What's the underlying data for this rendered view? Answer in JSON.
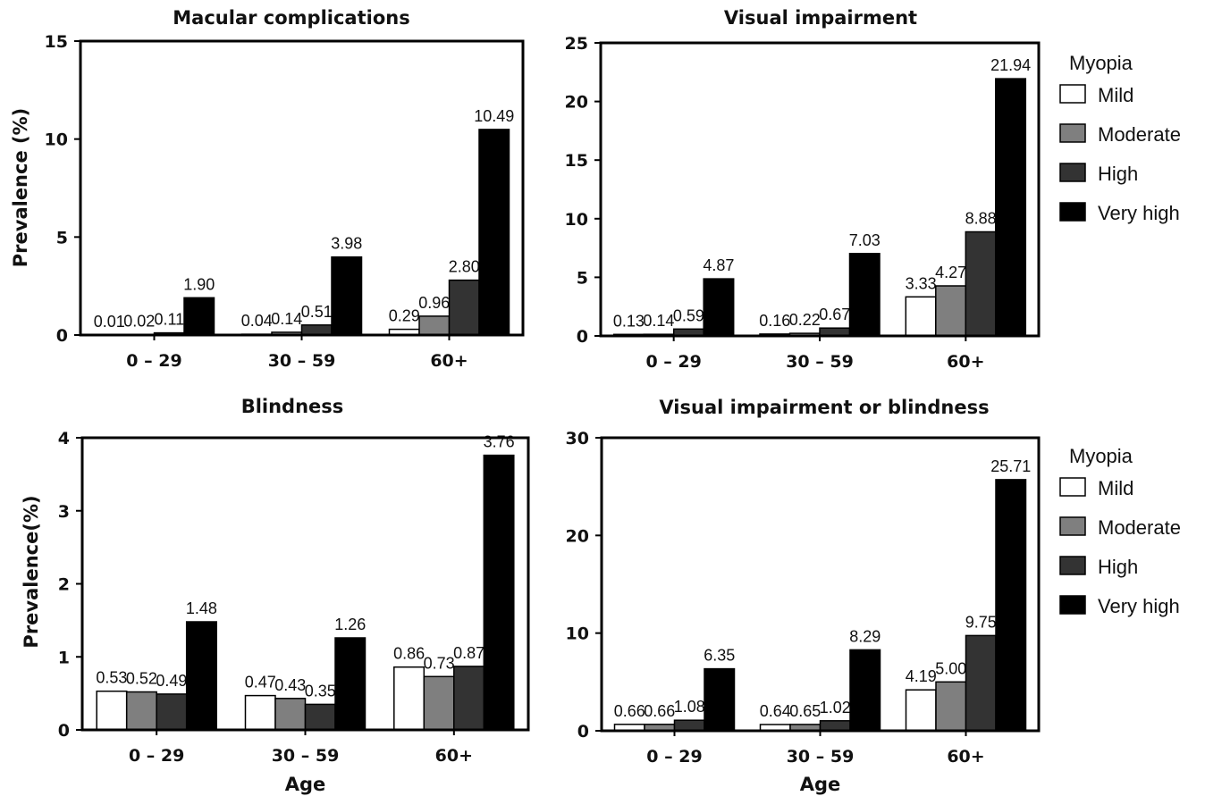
{
  "chart_data": [
    {
      "type": "bar",
      "title": "Macular complications",
      "ylabel": "Prevalence (%)",
      "xlabel": "",
      "ylim": [
        0,
        15
      ],
      "yticks": [
        0,
        5,
        10,
        15
      ],
      "categories": [
        "0 – 29",
        "30 – 59",
        "60+"
      ],
      "series": [
        {
          "name": "Mild",
          "values": [
            0.01,
            0.04,
            0.29
          ],
          "labels": [
            "0.01",
            "0.04",
            "0.29"
          ]
        },
        {
          "name": "Moderate",
          "values": [
            0.02,
            0.14,
            0.96
          ],
          "labels": [
            "0.02",
            "0.14",
            "0.96"
          ]
        },
        {
          "name": "High",
          "values": [
            0.11,
            0.51,
            2.8
          ],
          "labels": [
            "0.11",
            "0.51",
            "2.80"
          ]
        },
        {
          "name": "Very high",
          "values": [
            1.9,
            3.98,
            10.49
          ],
          "labels": [
            "1.90",
            "3.98",
            "10.49"
          ]
        }
      ]
    },
    {
      "type": "bar",
      "title": "Visual impairment",
      "ylabel": "",
      "xlabel": "",
      "ylim": [
        0,
        25
      ],
      "yticks": [
        0,
        5,
        10,
        15,
        20,
        25
      ],
      "categories": [
        "0 – 29",
        "30 – 59",
        "60+"
      ],
      "series": [
        {
          "name": "Mild",
          "values": [
            0.13,
            0.16,
            3.33
          ],
          "labels": [
            "0.13",
            "0.16",
            "3.33"
          ]
        },
        {
          "name": "Moderate",
          "values": [
            0.14,
            0.22,
            4.27
          ],
          "labels": [
            "0.14",
            "0.22",
            "4.27"
          ]
        },
        {
          "name": "High",
          "values": [
            0.59,
            0.67,
            8.88
          ],
          "labels": [
            "0.59",
            "0.67",
            "8.88"
          ]
        },
        {
          "name": "Very high",
          "values": [
            4.87,
            7.03,
            21.94
          ],
          "labels": [
            "4.87",
            "7.03",
            "21.94"
          ]
        }
      ]
    },
    {
      "type": "bar",
      "title": "Blindness",
      "ylabel": "Prevalence(%)",
      "xlabel": "Age",
      "ylim": [
        0,
        4
      ],
      "yticks": [
        0,
        1,
        2,
        3,
        4
      ],
      "categories": [
        "0 – 29",
        "30 – 59",
        "60+"
      ],
      "series": [
        {
          "name": "Mild",
          "values": [
            0.53,
            0.47,
            0.86
          ],
          "labels": [
            "0.53",
            "0.47",
            "0.86"
          ]
        },
        {
          "name": "Moderate",
          "values": [
            0.52,
            0.43,
            0.73
          ],
          "labels": [
            "0.52",
            "0.43",
            "0.73"
          ]
        },
        {
          "name": "High",
          "values": [
            0.49,
            0.35,
            0.87
          ],
          "labels": [
            "0.49",
            "0.35",
            "0.87"
          ]
        },
        {
          "name": "Very high",
          "values": [
            1.48,
            1.26,
            3.76
          ],
          "labels": [
            "1.48",
            "1.26",
            "3.76"
          ]
        }
      ]
    },
    {
      "type": "bar",
      "title": "Visual impairment or blindness",
      "ylabel": "",
      "xlabel": "Age",
      "ylim": [
        0,
        30
      ],
      "yticks": [
        0,
        10,
        20,
        30
      ],
      "categories": [
        "0 – 29",
        "30 – 59",
        "60+"
      ],
      "series": [
        {
          "name": "Mild",
          "values": [
            0.66,
            0.64,
            4.19
          ],
          "labels": [
            "0.66",
            "0.64",
            "4.19"
          ]
        },
        {
          "name": "Moderate",
          "values": [
            0.66,
            0.65,
            5.0
          ],
          "labels": [
            "0.66",
            "0.65",
            "5.00"
          ]
        },
        {
          "name": "High",
          "values": [
            1.08,
            1.02,
            9.75
          ],
          "labels": [
            "1.08",
            "1.02",
            "9.75"
          ]
        },
        {
          "name": "Very high",
          "values": [
            6.35,
            8.29,
            25.71
          ],
          "labels": [
            "6.35",
            "8.29",
            "25.71"
          ]
        }
      ]
    }
  ],
  "legend": {
    "title": "Myopia",
    "items": [
      "Mild",
      "Moderate",
      "High",
      "Very high"
    ],
    "placement": "right"
  },
  "colors": {
    "Mild": "#ffffff",
    "Moderate": "#7f7f7f",
    "High": "#333333",
    "Very high": "#000000",
    "axis": "#000000"
  }
}
